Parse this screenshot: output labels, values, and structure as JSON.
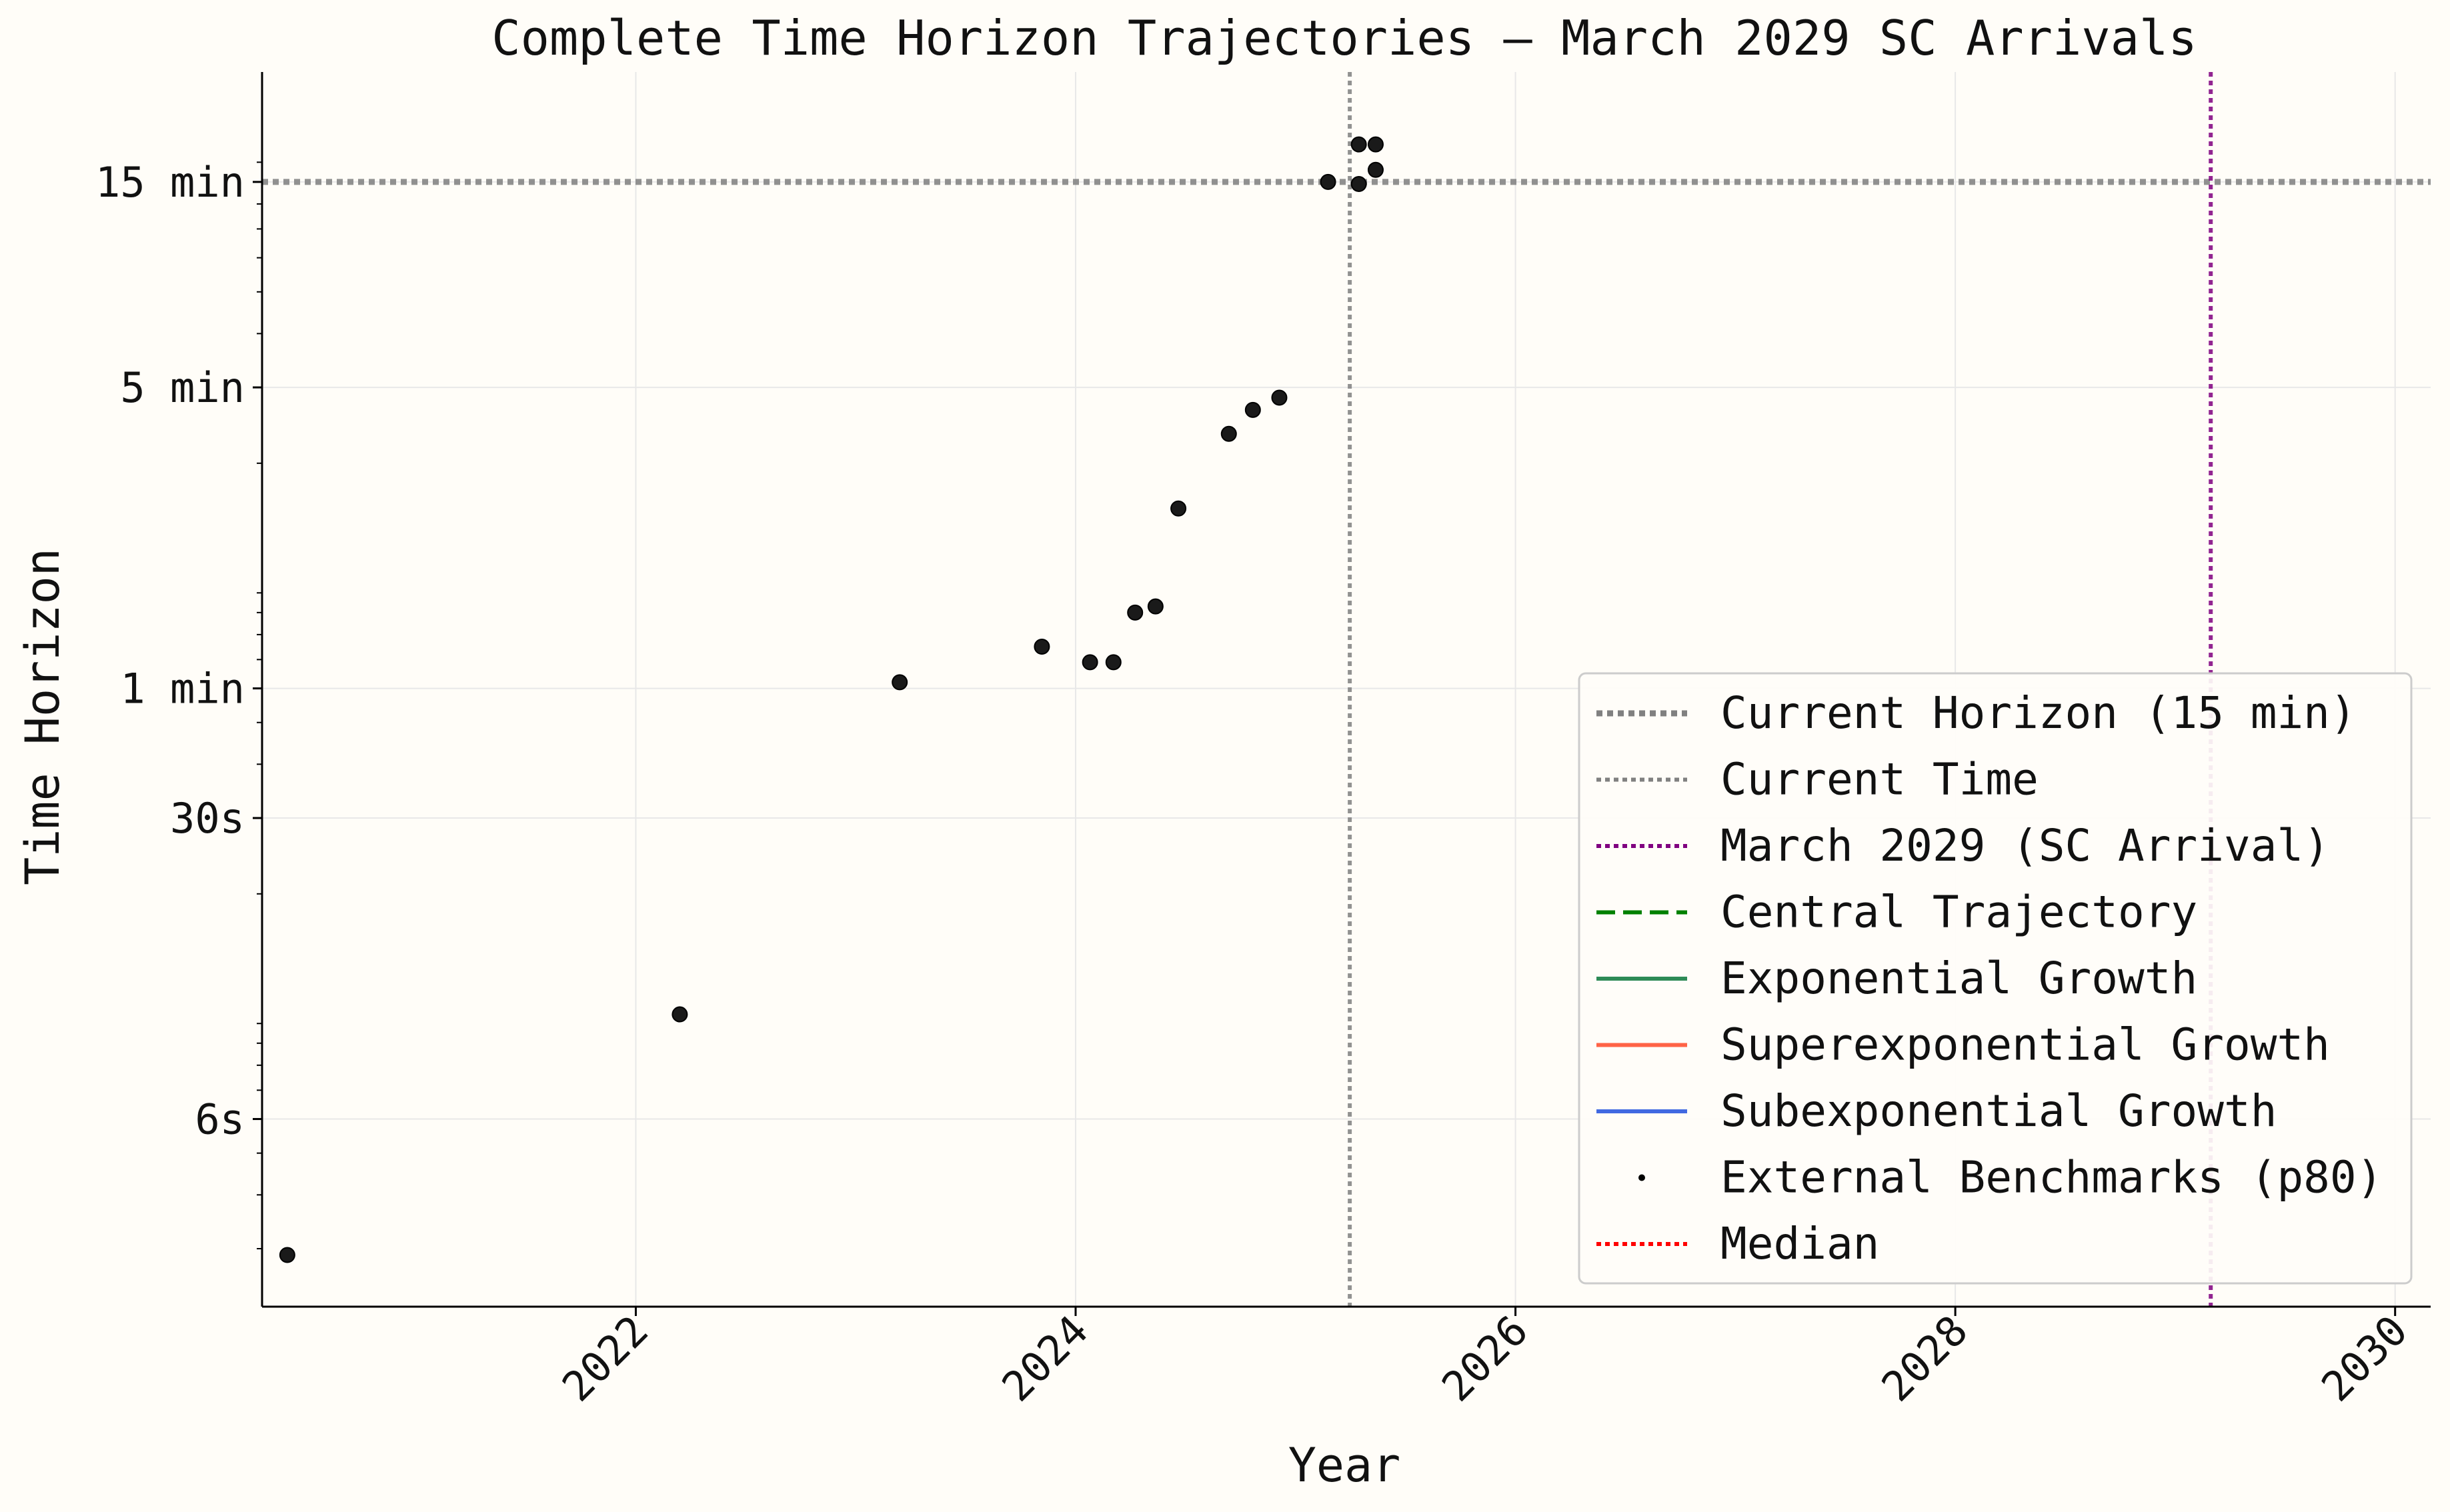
{
  "chart_data": {
    "type": "scatter",
    "title": "Complete Time Horizon Trajectories — March 2029 SC Arrivals",
    "xlabel": "Year",
    "ylabel": "Time Horizon",
    "x_scale": "linear",
    "y_scale": "log",
    "xlim": [
      "2020-04-20",
      "2030-03-01"
    ],
    "ylim": [
      2.2,
      1620
    ],
    "x_ticks": [
      "2022",
      "2024",
      "2026",
      "2028",
      "2030"
    ],
    "y_ticks": [
      {
        "value": 6,
        "label": "6s"
      },
      {
        "value": 30,
        "label": "30s"
      },
      {
        "value": 60,
        "label": "1 min"
      },
      {
        "value": 300,
        "label": "5 min"
      },
      {
        "value": 900,
        "label": "15 min"
      }
    ],
    "y_units": "seconds",
    "grid": true,
    "legend_position": "lower-right",
    "reference_lines": [
      {
        "name": "Current Horizon (15 min)",
        "orientation": "horizontal",
        "value": 900,
        "color": "#808080",
        "style": "dotted-thick"
      },
      {
        "name": "Current Time",
        "orientation": "vertical",
        "value": "2025-04-01",
        "color": "#808080",
        "style": "dotted"
      },
      {
        "name": "March 2029 (SC Arrival)",
        "orientation": "vertical",
        "value": "2029-03-01",
        "color": "#800080",
        "style": "dotted"
      }
    ],
    "legend": [
      {
        "label": "Current Horizon (15 min)",
        "color": "#808080",
        "style": "dotted-thick"
      },
      {
        "label": "Current Time",
        "color": "#808080",
        "style": "dotted"
      },
      {
        "label": "March 2029 (SC Arrival)",
        "color": "#800080",
        "style": "dotted"
      },
      {
        "label": "Central Trajectory",
        "color": "#008000",
        "style": "dashed"
      },
      {
        "label": "Exponential Growth",
        "color": "#2e8b57",
        "style": "solid"
      },
      {
        "label": "Superexponential Growth",
        "color": "#ff6347",
        "style": "solid"
      },
      {
        "label": "Subexponential Growth",
        "color": "#4169e1",
        "style": "solid"
      },
      {
        "label": "External Benchmarks (p80)",
        "color": "#000000",
        "style": "point"
      },
      {
        "label": "Median",
        "color": "#ff0000",
        "style": "dotted"
      }
    ],
    "series": [
      {
        "name": "External Benchmarks (p80)",
        "color": "#1a1a1a",
        "points": [
          {
            "x": "2020-06-01",
            "y": 2.9
          },
          {
            "x": "2022-03-15",
            "y": 10.5
          },
          {
            "x": "2023-03-15",
            "y": 62
          },
          {
            "x": "2023-11-06",
            "y": 75
          },
          {
            "x": "2024-01-25",
            "y": 69
          },
          {
            "x": "2024-03-04",
            "y": 69
          },
          {
            "x": "2024-04-09",
            "y": 90
          },
          {
            "x": "2024-05-13",
            "y": 93
          },
          {
            "x": "2024-06-20",
            "y": 157
          },
          {
            "x": "2024-09-12",
            "y": 234
          },
          {
            "x": "2024-10-22",
            "y": 266
          },
          {
            "x": "2024-12-05",
            "y": 284
          },
          {
            "x": "2025-02-24",
            "y": 900
          },
          {
            "x": "2025-04-16",
            "y": 1100
          },
          {
            "x": "2025-04-16",
            "y": 890
          },
          {
            "x": "2025-05-14",
            "y": 1100
          },
          {
            "x": "2025-05-14",
            "y": 960
          }
        ]
      }
    ]
  }
}
